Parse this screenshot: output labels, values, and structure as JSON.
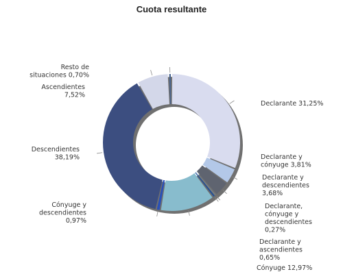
{
  "chart_data": {
    "type": "pie",
    "variant": "donut",
    "title": "Cuota resultante",
    "legend": "none",
    "slices": [
      {
        "name": "Declarante",
        "label_lines": [
          "Declarante 31,25%"
        ],
        "value": 31.25,
        "color": "#d9dcef"
      },
      {
        "name": "Declarante y cónyuge",
        "label_lines": [
          "Declarante y",
          "cónyuge 3,81%"
        ],
        "value": 3.81,
        "color": "#b3c8e8"
      },
      {
        "name": "Declarante y descendientes",
        "label_lines": [
          "Declarante y",
          "descendientes",
          "3,68%"
        ],
        "value": 3.68,
        "color": "#5f6470"
      },
      {
        "name": "Declarante, cónyuge y descendientes",
        "label_lines": [
          "Declarante,",
          "cónyuge y",
          "descendientes",
          "0,27%"
        ],
        "value": 0.27,
        "color": "#7fa6c4"
      },
      {
        "name": "Declarante y ascendientes",
        "label_lines": [
          "Declarante y",
          "ascendientes",
          "0,65%"
        ],
        "value": 0.65,
        "color": "#1d4e9a"
      },
      {
        "name": "Cónyuge",
        "label_lines": [
          "Cónyuge 12,97%"
        ],
        "value": 12.97,
        "color": "#88bccd"
      },
      {
        "name": "Cónyuge y descendientes",
        "label_lines": [
          "Cónyuge y",
          "descendientes",
          "0,97%"
        ],
        "value": 0.97,
        "color": "#2950b8"
      },
      {
        "name": "Descendientes",
        "label_lines": [
          "Descendientes",
          "38,19%"
        ],
        "value": 38.19,
        "color": "#3c4e80"
      },
      {
        "name": "Ascendientes",
        "label_lines": [
          "Ascendientes",
          "7,52%"
        ],
        "value": 7.52,
        "color": "#d3d7e9"
      },
      {
        "name": "Resto de situaciones",
        "label_lines": [
          "Resto de",
          "situaciones 0,70%"
        ],
        "value": 0.7,
        "color": "#47638e"
      }
    ]
  }
}
